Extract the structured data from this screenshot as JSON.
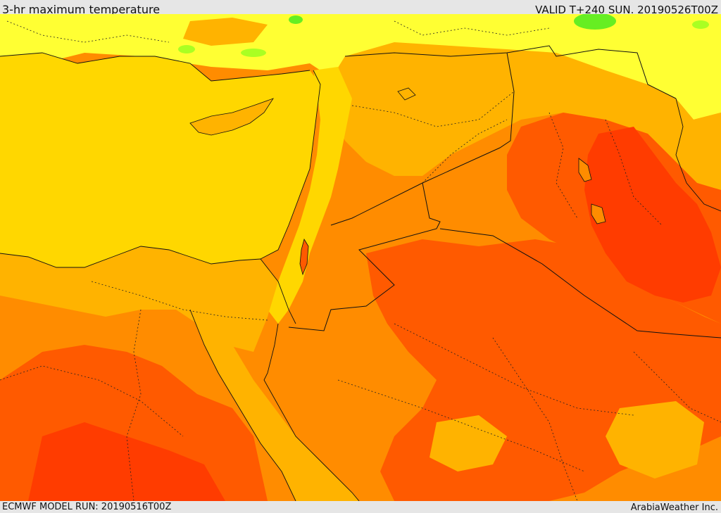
{
  "header": {
    "title": "3-hr maximum temperature",
    "valid_time": "VALID T+240 SUN. 20190526T00Z"
  },
  "footer": {
    "model_run": "ECMWF MODEL RUN: 20190516T00Z",
    "credit": "ArabiaWeather Inc."
  },
  "palette": {
    "sea_yellow": "#ffd700",
    "cool_yellow": "#ffff33",
    "green": "#66ee22",
    "light_orange": "#ffb300",
    "orange": "#ff8c00",
    "dark_orange": "#ff5a00",
    "red_orange": "#ff3c00",
    "border_line": "#111111"
  }
}
